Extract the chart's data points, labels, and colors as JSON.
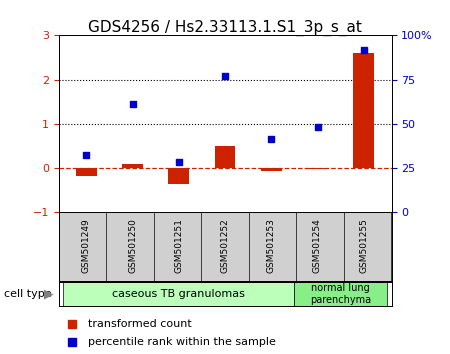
{
  "title": "GDS4256 / Hs2.33113.1.S1_3p_s_at",
  "samples": [
    "GSM501249",
    "GSM501250",
    "GSM501251",
    "GSM501252",
    "GSM501253",
    "GSM501254",
    "GSM501255"
  ],
  "transformed_count": [
    -0.18,
    0.1,
    -0.35,
    0.5,
    -0.07,
    -0.03,
    2.6
  ],
  "percentile_rank_left": [
    0.3,
    1.45,
    0.15,
    2.08,
    0.65,
    0.93,
    2.68
  ],
  "ylim_left": [
    -1,
    3
  ],
  "ylim_right": [
    0,
    100
  ],
  "yticks_left": [
    -1,
    0,
    1,
    2,
    3
  ],
  "yticks_right": [
    0,
    25,
    50,
    75,
    100
  ],
  "ytick_right_labels": [
    "0",
    "25",
    "50",
    "75",
    "100%"
  ],
  "bar_color": "#cc2200",
  "scatter_color": "#0000cc",
  "zero_line_color": "#cc2200",
  "dotted_line_y": [
    1,
    2
  ],
  "group1_label": "caseous TB granulomas",
  "group1_color": "#bbffbb",
  "group1_darker_color": "#88ee88",
  "group2_label": "normal lung\nparenchyma",
  "group2_color": "#88ee88",
  "sample_box_color": "#d0d0d0",
  "legend_label_red": "transformed count",
  "legend_label_blue": "percentile rank within the sample",
  "cell_type_label": "cell type",
  "bg_color": "#ffffff",
  "title_fontsize": 11,
  "tick_fontsize": 8,
  "bar_width": 0.45
}
